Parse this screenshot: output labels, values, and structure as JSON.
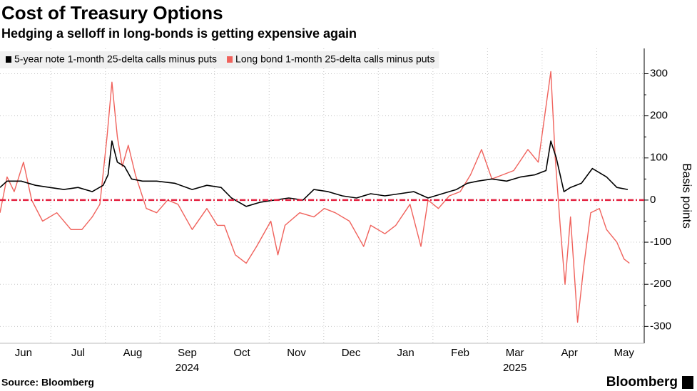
{
  "chart_data": {
    "type": "line",
    "title": "Cost of Treasury Options",
    "subtitle": "Hedging a selloff in long-bonds is getting expensive again",
    "y_axis_label": "Basis points",
    "source": "Source: Bloomberg",
    "brand": "Bloomberg",
    "xlim": [
      0.07,
      11.87
    ],
    "xticks": [
      {
        "value": 0.5,
        "label": "Jun"
      },
      {
        "value": 1.5,
        "label": "Jul"
      },
      {
        "value": 2.5,
        "label": "Aug"
      },
      {
        "value": 3.5,
        "label": "Sep"
      },
      {
        "value": 4.5,
        "label": "Oct"
      },
      {
        "value": 5.5,
        "label": "Nov"
      },
      {
        "value": 6.5,
        "label": "Dec"
      },
      {
        "value": 7.5,
        "label": "Jan"
      },
      {
        "value": 8.5,
        "label": "Feb"
      },
      {
        "value": 9.5,
        "label": "Mar"
      },
      {
        "value": 10.5,
        "label": "Apr"
      },
      {
        "value": 11.5,
        "label": "May"
      }
    ],
    "year_labels": [
      {
        "value": 3.5,
        "label": "2024"
      },
      {
        "value": 9.5,
        "label": "2025"
      }
    ],
    "ylim": [
      -340,
      360
    ],
    "yticks": [
      -300,
      -200,
      -100,
      0,
      100,
      200,
      300
    ],
    "grid": true,
    "zero_line_color": "#e3203f",
    "legend": "top-left",
    "series": [
      {
        "name": "5-year note 1-month 25-delta calls minus puts",
        "color": "#000000",
        "x": [
          0.07,
          0.2,
          0.46,
          0.72,
          0.98,
          1.24,
          1.5,
          1.76,
          1.96,
          2.05,
          2.12,
          2.22,
          2.35,
          2.48,
          2.68,
          2.94,
          3.27,
          3.59,
          3.86,
          4.12,
          4.31,
          4.58,
          4.84,
          5.1,
          5.36,
          5.62,
          5.82,
          6.08,
          6.34,
          6.6,
          6.86,
          7.12,
          7.39,
          7.65,
          7.91,
          8.17,
          8.43,
          8.63,
          8.82,
          9.08,
          9.35,
          9.61,
          9.87,
          10.07,
          10.16,
          10.26,
          10.4,
          10.52,
          10.72,
          10.92,
          11.18,
          11.37,
          11.57
        ],
        "values": [
          30,
          45,
          45,
          35,
          30,
          25,
          30,
          20,
          35,
          60,
          140,
          90,
          80,
          50,
          45,
          45,
          40,
          25,
          35,
          30,
          5,
          -15,
          -5,
          0,
          5,
          0,
          25,
          20,
          10,
          5,
          15,
          10,
          15,
          20,
          5,
          15,
          25,
          40,
          45,
          50,
          45,
          55,
          60,
          70,
          140,
          100,
          20,
          30,
          40,
          75,
          55,
          30,
          25
        ]
      },
      {
        "name": "Long bond 1-month 25-delta calls minus puts",
        "color": "#f0625c",
        "x": [
          0.07,
          0.2,
          0.33,
          0.5,
          0.65,
          0.85,
          1.11,
          1.37,
          1.57,
          1.76,
          1.9,
          2.03,
          2.12,
          2.22,
          2.31,
          2.42,
          2.55,
          2.75,
          2.94,
          3.14,
          3.33,
          3.59,
          3.86,
          4.05,
          4.18,
          4.38,
          4.58,
          4.77,
          5.03,
          5.16,
          5.29,
          5.56,
          5.82,
          6.01,
          6.21,
          6.47,
          6.73,
          6.86,
          7.12,
          7.32,
          7.58,
          7.78,
          7.91,
          8.1,
          8.3,
          8.5,
          8.69,
          8.89,
          9.08,
          9.28,
          9.48,
          9.74,
          9.93,
          10.16,
          10.24,
          10.33,
          10.42,
          10.52,
          10.65,
          10.76,
          10.89,
          11.05,
          11.18,
          11.37,
          11.5,
          11.6
        ],
        "values": [
          -30,
          55,
          20,
          90,
          0,
          -50,
          -30,
          -70,
          -70,
          -40,
          -10,
          150,
          280,
          150,
          80,
          130,
          60,
          -20,
          -30,
          0,
          -10,
          -70,
          -20,
          -60,
          -60,
          -130,
          -150,
          -110,
          -50,
          -130,
          -60,
          -30,
          -40,
          -20,
          -30,
          -50,
          -110,
          -60,
          -80,
          -60,
          -10,
          -110,
          0,
          -20,
          10,
          20,
          60,
          120,
          50,
          60,
          70,
          120,
          90,
          305,
          100,
          -60,
          -200,
          -40,
          -290,
          -160,
          -30,
          -20,
          -70,
          -100,
          -140,
          -150
        ]
      }
    ]
  }
}
